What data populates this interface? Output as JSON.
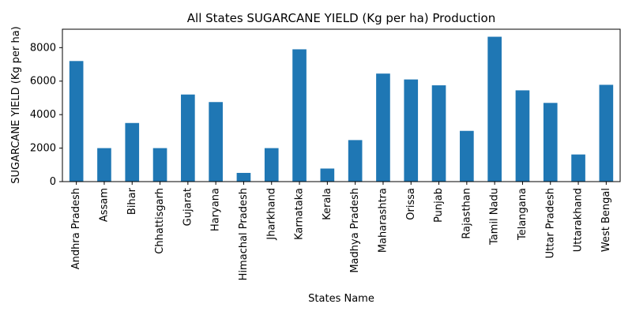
{
  "chart_data": {
    "type": "bar",
    "title": "All States SUGARCANE YIELD (Kg per ha) Production",
    "xlabel": "States Name",
    "ylabel": "SUGARCANE YIELD (Kg per ha)",
    "ylim": [
      0,
      9100
    ],
    "yticks": [
      0,
      2000,
      4000,
      6000,
      8000
    ],
    "grid": false,
    "legend": "none",
    "bar_color": "#1f77b4",
    "categories": [
      "Andhra Pradesh",
      "Assam",
      "Bihar",
      "Chhattisgarh",
      "Gujarat",
      "Haryana",
      "Himachal Pradesh",
      "Jharkhand",
      "Karnataka",
      "Kerala",
      "Madhya Pradesh",
      "Maharashtra",
      "Orissa",
      "Punjab",
      "Rajasthan",
      "Tamil Nadu",
      "Telangana",
      "Uttar Pradesh",
      "Uttarakhand",
      "West Bengal"
    ],
    "values": [
      7200,
      2000,
      3500,
      2000,
      5200,
      4750,
      520,
      2000,
      7900,
      780,
      2480,
      6450,
      6100,
      5750,
      3030,
      8650,
      5450,
      4700,
      1620,
      5780
    ]
  }
}
